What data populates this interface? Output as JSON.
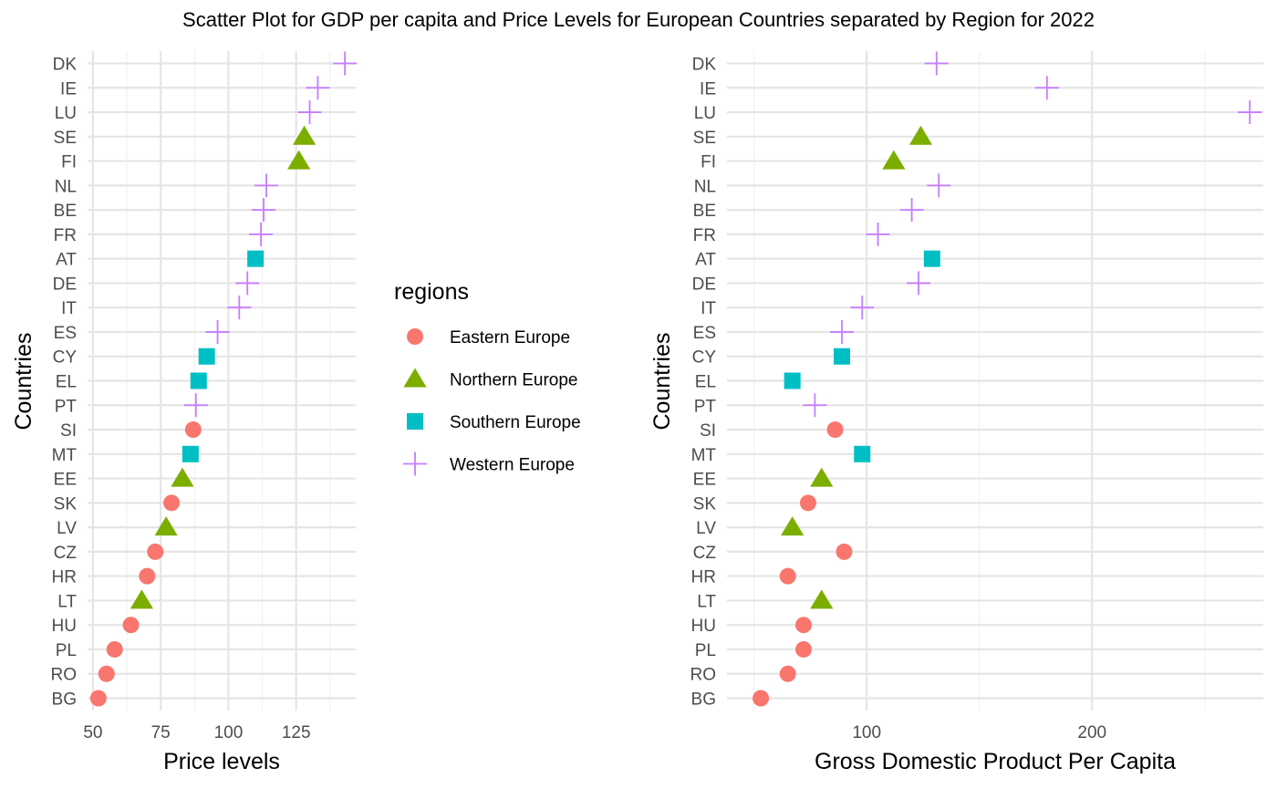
{
  "title": "Scatter Plot for GDP per capita and Price Levels for European Countries separated by Region for 2022",
  "legend": {
    "title": "regions",
    "items": [
      {
        "label": "Eastern Europe",
        "color": "#F8766D",
        "shape": "circle"
      },
      {
        "label": "Northern Europe",
        "color": "#7CAE00",
        "shape": "triangle"
      },
      {
        "label": "Southern Europe",
        "color": "#00BFC4",
        "shape": "square"
      },
      {
        "label": "Western Europe",
        "color": "#C77CFF",
        "shape": "plus"
      }
    ]
  },
  "chart_data": [
    {
      "type": "scatter",
      "xlabel": "Price levels",
      "ylabel": "Countries",
      "xlim": [
        48,
        147
      ],
      "xticks": [
        50,
        75,
        100,
        125
      ],
      "categories": [
        "BG",
        "RO",
        "PL",
        "HU",
        "LT",
        "HR",
        "CZ",
        "LV",
        "SK",
        "EE",
        "MT",
        "SI",
        "PT",
        "EL",
        "CY",
        "ES",
        "IT",
        "DE",
        "AT",
        "FR",
        "BE",
        "NL",
        "FI",
        "SE",
        "LU",
        "IE",
        "DK"
      ],
      "points": [
        {
          "country": "DK",
          "region": "Western Europe",
          "value": 143
        },
        {
          "country": "IE",
          "region": "Western Europe",
          "value": 133
        },
        {
          "country": "LU",
          "region": "Western Europe",
          "value": 130
        },
        {
          "country": "SE",
          "region": "Northern Europe",
          "value": 128
        },
        {
          "country": "FI",
          "region": "Northern Europe",
          "value": 126
        },
        {
          "country": "NL",
          "region": "Western Europe",
          "value": 114
        },
        {
          "country": "BE",
          "region": "Western Europe",
          "value": 113
        },
        {
          "country": "FR",
          "region": "Western Europe",
          "value": 112
        },
        {
          "country": "AT",
          "region": "Southern Europe",
          "value": 110
        },
        {
          "country": "DE",
          "region": "Western Europe",
          "value": 107
        },
        {
          "country": "IT",
          "region": "Western Europe",
          "value": 104
        },
        {
          "country": "ES",
          "region": "Western Europe",
          "value": 96
        },
        {
          "country": "CY",
          "region": "Southern Europe",
          "value": 92
        },
        {
          "country": "EL",
          "region": "Southern Europe",
          "value": 89
        },
        {
          "country": "PT",
          "region": "Western Europe",
          "value": 88
        },
        {
          "country": "SI",
          "region": "Eastern Europe",
          "value": 87
        },
        {
          "country": "MT",
          "region": "Southern Europe",
          "value": 86
        },
        {
          "country": "EE",
          "region": "Northern Europe",
          "value": 83
        },
        {
          "country": "SK",
          "region": "Eastern Europe",
          "value": 79
        },
        {
          "country": "LV",
          "region": "Northern Europe",
          "value": 77
        },
        {
          "country": "CZ",
          "region": "Eastern Europe",
          "value": 73
        },
        {
          "country": "HR",
          "region": "Eastern Europe",
          "value": 70
        },
        {
          "country": "LT",
          "region": "Northern Europe",
          "value": 68
        },
        {
          "country": "HU",
          "region": "Eastern Europe",
          "value": 64
        },
        {
          "country": "PL",
          "region": "Eastern Europe",
          "value": 58
        },
        {
          "country": "RO",
          "region": "Eastern Europe",
          "value": 55
        },
        {
          "country": "BG",
          "region": "Eastern Europe",
          "value": 52
        }
      ]
    },
    {
      "type": "scatter",
      "xlabel": "Gross Domestic Product Per Capita",
      "ylabel": "Countries",
      "xlim": [
        38,
        276
      ],
      "xticks": [
        100,
        200
      ],
      "categories": [
        "BG",
        "RO",
        "PL",
        "HU",
        "LT",
        "HR",
        "CZ",
        "LV",
        "SK",
        "EE",
        "MT",
        "SI",
        "PT",
        "EL",
        "CY",
        "ES",
        "IT",
        "DE",
        "AT",
        "FR",
        "BE",
        "NL",
        "FI",
        "SE",
        "LU",
        "IE",
        "DK"
      ],
      "points": [
        {
          "country": "DK",
          "region": "Western Europe",
          "value": 131
        },
        {
          "country": "IE",
          "region": "Western Europe",
          "value": 180
        },
        {
          "country": "LU",
          "region": "Western Europe",
          "value": 270
        },
        {
          "country": "SE",
          "region": "Northern Europe",
          "value": 124
        },
        {
          "country": "FI",
          "region": "Northern Europe",
          "value": 112
        },
        {
          "country": "NL",
          "region": "Western Europe",
          "value": 132
        },
        {
          "country": "BE",
          "region": "Western Europe",
          "value": 120
        },
        {
          "country": "FR",
          "region": "Western Europe",
          "value": 105
        },
        {
          "country": "AT",
          "region": "Southern Europe",
          "value": 129
        },
        {
          "country": "DE",
          "region": "Western Europe",
          "value": 123
        },
        {
          "country": "IT",
          "region": "Western Europe",
          "value": 98
        },
        {
          "country": "ES",
          "region": "Western Europe",
          "value": 89
        },
        {
          "country": "CY",
          "region": "Southern Europe",
          "value": 89
        },
        {
          "country": "EL",
          "region": "Southern Europe",
          "value": 67
        },
        {
          "country": "PT",
          "region": "Western Europe",
          "value": 77
        },
        {
          "country": "SI",
          "region": "Eastern Europe",
          "value": 86
        },
        {
          "country": "MT",
          "region": "Southern Europe",
          "value": 98
        },
        {
          "country": "EE",
          "region": "Northern Europe",
          "value": 80
        },
        {
          "country": "SK",
          "region": "Eastern Europe",
          "value": 74
        },
        {
          "country": "LV",
          "region": "Northern Europe",
          "value": 67
        },
        {
          "country": "CZ",
          "region": "Eastern Europe",
          "value": 90
        },
        {
          "country": "HR",
          "region": "Eastern Europe",
          "value": 65
        },
        {
          "country": "LT",
          "region": "Northern Europe",
          "value": 80
        },
        {
          "country": "HU",
          "region": "Eastern Europe",
          "value": 72
        },
        {
          "country": "PL",
          "region": "Eastern Europe",
          "value": 72
        },
        {
          "country": "RO",
          "region": "Eastern Europe",
          "value": 65
        },
        {
          "country": "BG",
          "region": "Eastern Europe",
          "value": 53
        }
      ]
    }
  ]
}
